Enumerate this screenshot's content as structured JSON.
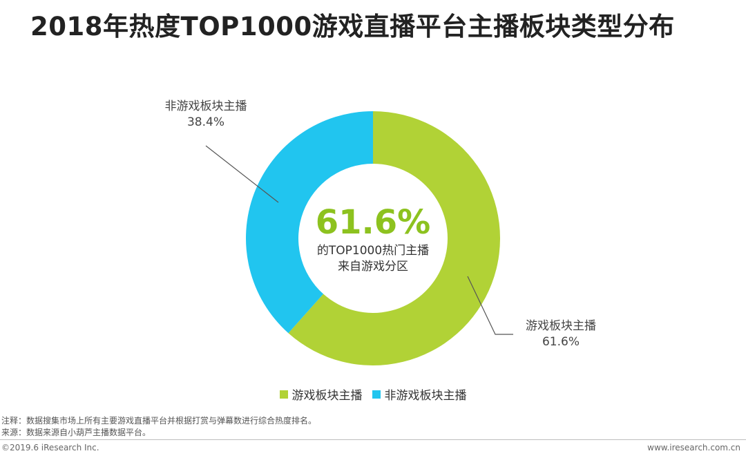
{
  "title": "2018年热度TOP1000游戏直播平台主播板块类型分布",
  "chart_data": {
    "type": "pie",
    "variant": "donut",
    "slices": [
      {
        "name": "游戏板块主播",
        "value": 61.6,
        "label": "61.6%",
        "color": "#b1d236"
      },
      {
        "name": "非游戏板块主播",
        "value": 38.4,
        "label": "38.4%",
        "color": "#21c5ef"
      }
    ],
    "center": {
      "value": "61.6%",
      "line1": "的TOP1000热门主播",
      "line2": "来自游戏分区",
      "value_color": "#8dc21f"
    },
    "legend": {
      "placement": "bottom-center",
      "items": [
        "游戏板块主播",
        "非游戏板块主播"
      ]
    }
  },
  "notes": {
    "note": "注释：数据搜集市场上所有主要游戏直播平台并根据打赏与弹幕数进行综合热度排名。",
    "source": "来源：数据来源自小葫芦主播数据平台。"
  },
  "footer": {
    "copyright": "©2019.6 iResearch Inc.",
    "website": "www.iresearch.com.cn"
  }
}
